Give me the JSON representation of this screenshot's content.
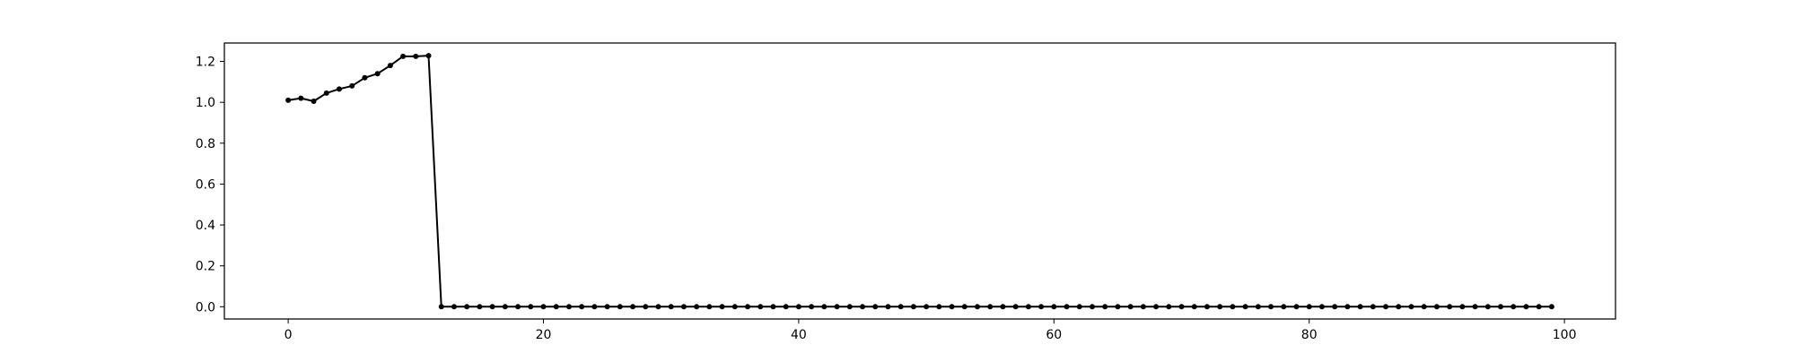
{
  "chart_data": {
    "type": "line",
    "title": "",
    "xlabel": "",
    "ylabel": "",
    "xlim": [
      -5,
      104
    ],
    "ylim": [
      -0.06,
      1.29
    ],
    "xticks": [
      0,
      20,
      40,
      60,
      80,
      100
    ],
    "xtick_labels": [
      "0",
      "20",
      "40",
      "60",
      "80",
      "100"
    ],
    "yticks": [
      0.0,
      0.2,
      0.4,
      0.6,
      0.8,
      1.0,
      1.2
    ],
    "ytick_labels": [
      "0.0",
      "0.2",
      "0.4",
      "0.6",
      "0.8",
      "1.0",
      "1.2"
    ],
    "grid": false,
    "legend": "none",
    "series": [
      {
        "color": "#000000",
        "marker": "dot",
        "x": [
          0,
          1,
          2,
          3,
          4,
          5,
          6,
          7,
          8,
          9,
          10,
          11,
          12,
          13,
          14,
          15,
          16,
          17,
          18,
          19,
          20,
          21,
          22,
          23,
          24,
          25,
          26,
          27,
          28,
          29,
          30,
          31,
          32,
          33,
          34,
          35,
          36,
          37,
          38,
          39,
          40,
          41,
          42,
          43,
          44,
          45,
          46,
          47,
          48,
          49,
          50,
          51,
          52,
          53,
          54,
          55,
          56,
          57,
          58,
          59,
          60,
          61,
          62,
          63,
          64,
          65,
          66,
          67,
          68,
          69,
          70,
          71,
          72,
          73,
          74,
          75,
          76,
          77,
          78,
          79,
          80,
          81,
          82,
          83,
          84,
          85,
          86,
          87,
          88,
          89,
          90,
          91,
          92,
          93,
          94,
          95,
          96,
          97,
          98,
          99
        ],
        "y": [
          1.01,
          1.02,
          1.005,
          1.045,
          1.065,
          1.08,
          1.12,
          1.14,
          1.18,
          1.225,
          1.225,
          1.228,
          0,
          0,
          0,
          0,
          0,
          0,
          0,
          0,
          0,
          0,
          0,
          0,
          0,
          0,
          0,
          0,
          0,
          0,
          0,
          0,
          0,
          0,
          0,
          0,
          0,
          0,
          0,
          0,
          0,
          0,
          0,
          0,
          0,
          0,
          0,
          0,
          0,
          0,
          0,
          0,
          0,
          0,
          0,
          0,
          0,
          0,
          0,
          0,
          0,
          0,
          0,
          0,
          0,
          0,
          0,
          0,
          0,
          0,
          0,
          0,
          0,
          0,
          0,
          0,
          0,
          0,
          0,
          0,
          0,
          0,
          0,
          0,
          0,
          0,
          0,
          0,
          0,
          0,
          0,
          0,
          0,
          0,
          0,
          0,
          0,
          0,
          0,
          0
        ]
      }
    ]
  }
}
